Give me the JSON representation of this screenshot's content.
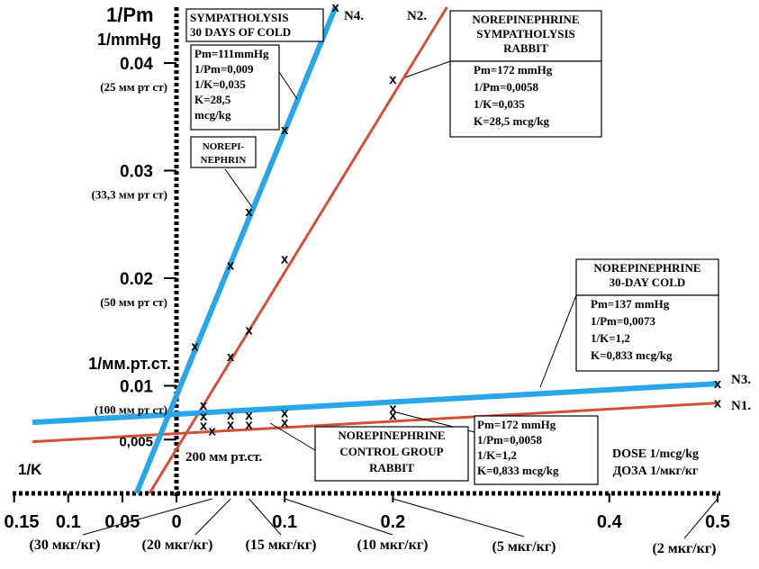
{
  "chart_data": {
    "type": "line",
    "title": "",
    "ylabel_main": "1/Pm",
    "ylabel_unit": "1/mmHg",
    "ylabel_alt": "1/мм.рт.ст.",
    "xlabel_en": "DOSE 1/mcg/kg",
    "xlabel_ru": "ДОЗА 1/мкг/кг",
    "x_negative_label": "1/K",
    "xlim": [
      -0.15,
      0.5
    ],
    "ylim": [
      0,
      0.045
    ],
    "y_ticks": [
      {
        "value": 0.04,
        "label": "0.04",
        "sub": "(25 мм рт ст)"
      },
      {
        "value": 0.03,
        "label": "0.03",
        "sub": "(33,3 мм рт ст)"
      },
      {
        "value": 0.02,
        "label": "0.02",
        "sub": "(50 мм рт ст)"
      },
      {
        "value": 0.01,
        "label": "0.01",
        "sub": "(100 мм рт ст)"
      },
      {
        "value": 0.005,
        "label": "0,005",
        "sub": ""
      }
    ],
    "y_extra_label": "200 мм рт.ст.",
    "x_ticks": [
      {
        "value": -0.15,
        "label": "0.15"
      },
      {
        "value": -0.1,
        "label": "0.1"
      },
      {
        "value": -0.05,
        "label": "0.05"
      },
      {
        "value": 0,
        "label": "0"
      },
      {
        "value": 0.1,
        "label": "0.1"
      },
      {
        "value": 0.2,
        "label": "0.2"
      },
      {
        "value": 0.4,
        "label": "0.4"
      },
      {
        "value": 0.5,
        "label": "0.5"
      }
    ],
    "dose_labels": [
      {
        "value": 0.033,
        "label": "(30 мкг/кг)"
      },
      {
        "value": 0.05,
        "label": "(20 мкг/кг)"
      },
      {
        "value": 0.067,
        "label": "(15 мкг/кг)"
      },
      {
        "value": 0.1,
        "label": "(10 мкг/кг)"
      },
      {
        "value": 0.2,
        "label": "(5 мкг/кг)"
      },
      {
        "value": 0.5,
        "label": "(2 мкг/кг)"
      }
    ],
    "series": [
      {
        "name": "N1.",
        "color": "#d0503a",
        "line": [
          [
            -0.133,
            0.0048
          ],
          [
            0.5,
            0.0084
          ]
        ],
        "points": [
          [
            0.025,
            0.0063
          ],
          [
            0.05,
            0.0064
          ],
          [
            0.067,
            0.0064
          ],
          [
            0.1,
            0.0066
          ],
          [
            0.2,
            0.0073
          ],
          [
            0.5,
            0.0084
          ]
        ]
      },
      {
        "name": "N2.",
        "color": "#d0503a",
        "line": [
          [
            -0.025,
            0.0
          ],
          [
            0.25,
            0.0452
          ]
        ],
        "points": [
          [
            0.025,
            0.0082
          ],
          [
            0.05,
            0.0127
          ],
          [
            0.067,
            0.0152
          ],
          [
            0.1,
            0.0218
          ],
          [
            0.2,
            0.0385
          ],
          [
            0.033,
            0.0058
          ]
        ]
      },
      {
        "name": "N3.",
        "color": "#2aa6e8",
        "line": [
          [
            -0.133,
            0.0066
          ],
          [
            0.5,
            0.0102
          ]
        ],
        "points": [
          [
            0.025,
            0.0072
          ],
          [
            0.05,
            0.0073
          ],
          [
            0.067,
            0.0073
          ],
          [
            0.1,
            0.0075
          ],
          [
            0.2,
            0.0079
          ],
          [
            0.5,
            0.0102
          ]
        ]
      },
      {
        "name": "N4.",
        "color": "#2aa6e8",
        "line": [
          [
            -0.037,
            0.0
          ],
          [
            0.147,
            0.0452
          ]
        ],
        "points": [
          [
            0.017,
            0.0137
          ],
          [
            0.05,
            0.0212
          ],
          [
            0.067,
            0.0262
          ],
          [
            0.1,
            0.0338
          ],
          [
            0.147,
            0.0452
          ]
        ]
      }
    ],
    "annotations": [
      {
        "id": "sympatholysis-cold",
        "lines": [
          "SYMPATHOLYSIS",
          "30 DAYS OF COLD"
        ]
      },
      {
        "id": "n4-params",
        "lines": [
          "Pm=111mmHg",
          "1/Pm=0,009",
          "1/K=0,035",
          "K=28,5",
          "mcg/kg"
        ]
      },
      {
        "id": "norepi-small",
        "lines": [
          "NOREPI-",
          "NEPHRIN"
        ]
      },
      {
        "id": "n2-title",
        "lines": [
          "NOREPINEPHRINE",
          "SYMPATHOLYSIS",
          "RABBIT"
        ]
      },
      {
        "id": "n2-params",
        "lines": [
          "Pm=172 mmHg",
          "1/Pm=0,0058",
          "1/K=0,035",
          "K=28,5 mcg/kg"
        ]
      },
      {
        "id": "n3-title",
        "lines": [
          "NOREPINEPHRINE",
          "30-DAY COLD"
        ]
      },
      {
        "id": "n3-params",
        "lines": [
          "Pm=137 mmHg",
          "1/Pm=0,0073",
          "1/K=1,2",
          "K=0,833 mcg/kg"
        ]
      },
      {
        "id": "n1-title",
        "lines": [
          "NOREPINEPHRINE",
          "CONTROL GROUP",
          "RABBIT"
        ]
      },
      {
        "id": "n1-params",
        "lines": [
          "Pm=172 mmHg",
          "1/Pm=0,0058",
          "1/K=1,2",
          "K=0,833 mcg/kg"
        ]
      }
    ],
    "point_marker": "x",
    "grid": false
  }
}
